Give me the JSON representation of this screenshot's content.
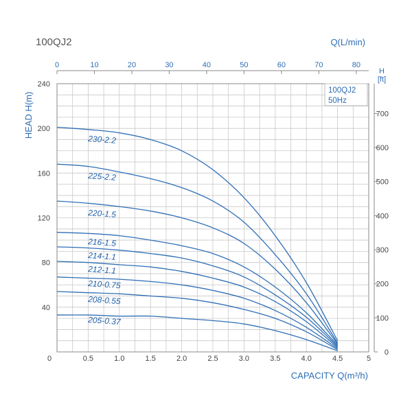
{
  "page": {
    "model_title": "100QJ2",
    "top_axis_label": "Q(L/min)",
    "left_axis_label": "HEAD H(m)",
    "right_axis_label_line1": "H",
    "right_axis_label_line2": "[ft]",
    "bottom_axis_label": "CAPACITY Q(m³/h)",
    "legend_line1": "100QJ2",
    "legend_line2": "50Hz"
  },
  "colors": {
    "curve": "#2f6fb6",
    "grid": "#c8c8c8",
    "axis": "#888888",
    "accent_text": "#2e6db3"
  },
  "chart_data": {
    "type": "line",
    "title": "100QJ2",
    "xlabel": "CAPACITY Q(m³/h)",
    "ylabel": "HEAD H(m)",
    "x_secondary_label": "Q(L/min)",
    "y_secondary_label": "H [ft]",
    "xlim": [
      0,
      5
    ],
    "ylim": [
      0,
      240
    ],
    "x2lim": [
      0,
      83.33
    ],
    "y2lim": [
      0,
      787.4
    ],
    "x_ticks": [
      "0",
      "0.5",
      "1.0",
      "1.5",
      "2.0",
      "2.5",
      "3.0",
      "3.5",
      "4.0",
      "4.5",
      "5"
    ],
    "y_ticks": [
      "",
      "40",
      "80",
      "120",
      "160",
      "200",
      "240"
    ],
    "x2_ticks": [
      "0",
      "10",
      "20",
      "30",
      "40",
      "50",
      "60",
      "70",
      "80"
    ],
    "y2_ticks": [
      "0",
      "100",
      "200",
      "300",
      "400",
      "500",
      "600",
      "700"
    ],
    "origin_label": "0",
    "grid": true,
    "legend": "top-right",
    "series": [
      {
        "name": "230-2.2",
        "x": [
          0,
          0.5,
          1.0,
          1.5,
          2.0,
          2.5,
          3.0,
          3.5,
          4.0,
          4.5
        ],
        "y": [
          201,
          199,
          196,
          190,
          180,
          163,
          138,
          104,
          62,
          10
        ]
      },
      {
        "name": "225-2.2",
        "x": [
          0,
          0.5,
          1.0,
          1.5,
          2.0,
          2.5,
          3.0,
          3.5,
          4.0,
          4.5
        ],
        "y": [
          168,
          166,
          161,
          155,
          147,
          135,
          116,
          87,
          52,
          8
        ]
      },
      {
        "name": "220-1.5",
        "x": [
          0,
          0.5,
          1.0,
          1.5,
          2.0,
          2.5,
          3.0,
          3.5,
          4.0,
          4.5
        ],
        "y": [
          135,
          133,
          130,
          126,
          120,
          111,
          97,
          74,
          44,
          7
        ]
      },
      {
        "name": "216-1.5",
        "x": [
          0,
          0.5,
          1.0,
          1.5,
          2.0,
          2.5,
          3.0,
          3.5,
          4.0,
          4.5
        ],
        "y": [
          107,
          106,
          104,
          100,
          95,
          88,
          76,
          58,
          35,
          6
        ]
      },
      {
        "name": "214-1.1",
        "x": [
          0,
          0.5,
          1.0,
          1.5,
          2.0,
          2.5,
          3.0,
          3.5,
          4.0,
          4.5
        ],
        "y": [
          94,
          93,
          91,
          88,
          84,
          77,
          67,
          51,
          31,
          5
        ]
      },
      {
        "name": "212-1.1",
        "x": [
          0,
          0.5,
          1.0,
          1.5,
          2.0,
          2.5,
          3.0,
          3.5,
          4.0,
          4.5
        ],
        "y": [
          81,
          80,
          78,
          76,
          72,
          66,
          58,
          45,
          27,
          4
        ]
      },
      {
        "name": "210-0.75",
        "x": [
          0,
          0.5,
          1.0,
          1.5,
          2.0,
          2.5,
          3.0,
          3.5,
          4.0,
          4.5
        ],
        "y": [
          67,
          66,
          65,
          63,
          60,
          55,
          48,
          37,
          22,
          3
        ]
      },
      {
        "name": "208-0.55",
        "x": [
          0,
          0.5,
          1.0,
          1.5,
          2.0,
          2.5,
          3.0,
          3.5,
          4.0,
          4.5
        ],
        "y": [
          54,
          53,
          52,
          50,
          48,
          44,
          38,
          30,
          18,
          2
        ]
      },
      {
        "name": "205-0.37",
        "x": [
          0,
          0.5,
          1.0,
          1.5,
          2.0,
          2.5,
          3.0,
          3.5,
          4.0,
          4.5
        ],
        "y": [
          33,
          33,
          32,
          32,
          30,
          28,
          25,
          19,
          11,
          1
        ]
      }
    ]
  }
}
